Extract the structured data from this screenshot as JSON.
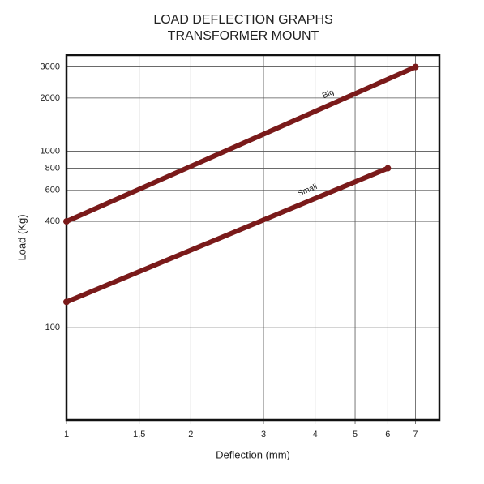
{
  "chart_data": {
    "type": "line",
    "title": "LOAD DEFLECTION GRAPHS",
    "subtitle": "TRANSFORMER MOUNT",
    "x_label": "Deflection (mm)",
    "y_label": "Load (Kg)",
    "x_scale": "log",
    "y_scale": "log",
    "grid": true,
    "xlim": [
      1,
      8
    ],
    "ylim": [
      30,
      3500
    ],
    "xticks": [
      1,
      {
        "value": 1.5,
        "label": "1,5"
      },
      2,
      3,
      4,
      5,
      6,
      7
    ],
    "yticks": [
      100,
      400,
      600,
      800,
      1000,
      2000,
      3000
    ],
    "series": [
      {
        "name": "Big",
        "color": "#7a1a1a",
        "x": [
          1,
          7
        ],
        "values": [
          400,
          3000
        ]
      },
      {
        "name": "Small",
        "color": "#7a1a1a",
        "x": [
          1,
          6
        ],
        "values": [
          140,
          800
        ]
      }
    ]
  }
}
